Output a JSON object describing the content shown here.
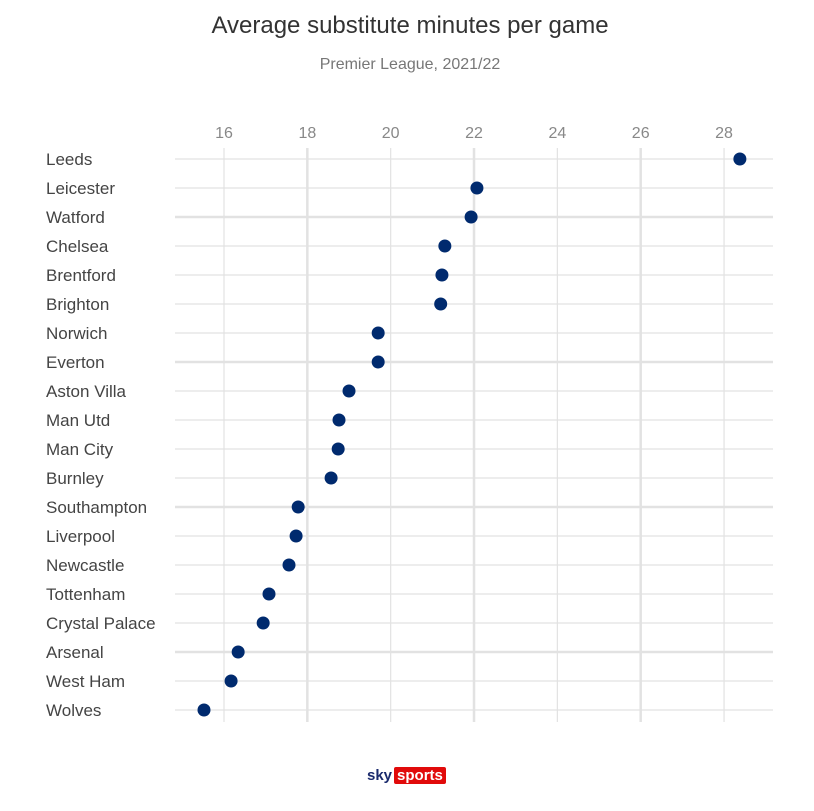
{
  "chart_data": {
    "type": "scatter",
    "title": "Average substitute minutes per game",
    "subtitle": "Premier League, 2021/22",
    "xlim": [
      14.8,
      29.2
    ],
    "x_ticks": [
      16,
      18,
      20,
      22,
      24,
      26,
      28
    ],
    "grid": true,
    "dot_color": "#002a6e",
    "categories": [
      "Leeds",
      "Leicester",
      "Watford",
      "Chelsea",
      "Brentford",
      "Brighton",
      "Norwich",
      "Everton",
      "Aston Villa",
      "Man Utd",
      "Man City",
      "Burnley",
      "Southampton",
      "Liverpool",
      "Newcastle",
      "Tottenham",
      "Crystal Palace",
      "Arsenal",
      "West Ham",
      "Wolves"
    ],
    "values": [
      28.38,
      22.07,
      21.93,
      21.3,
      21.23,
      21.2,
      19.7,
      19.7,
      19.0,
      18.76,
      18.74,
      18.57,
      17.78,
      17.73,
      17.56,
      17.08,
      16.94,
      16.34,
      16.17,
      15.52
    ]
  },
  "logo": {
    "sky": "sky",
    "sports": "sports",
    "brand_color": "#e10a0a"
  }
}
